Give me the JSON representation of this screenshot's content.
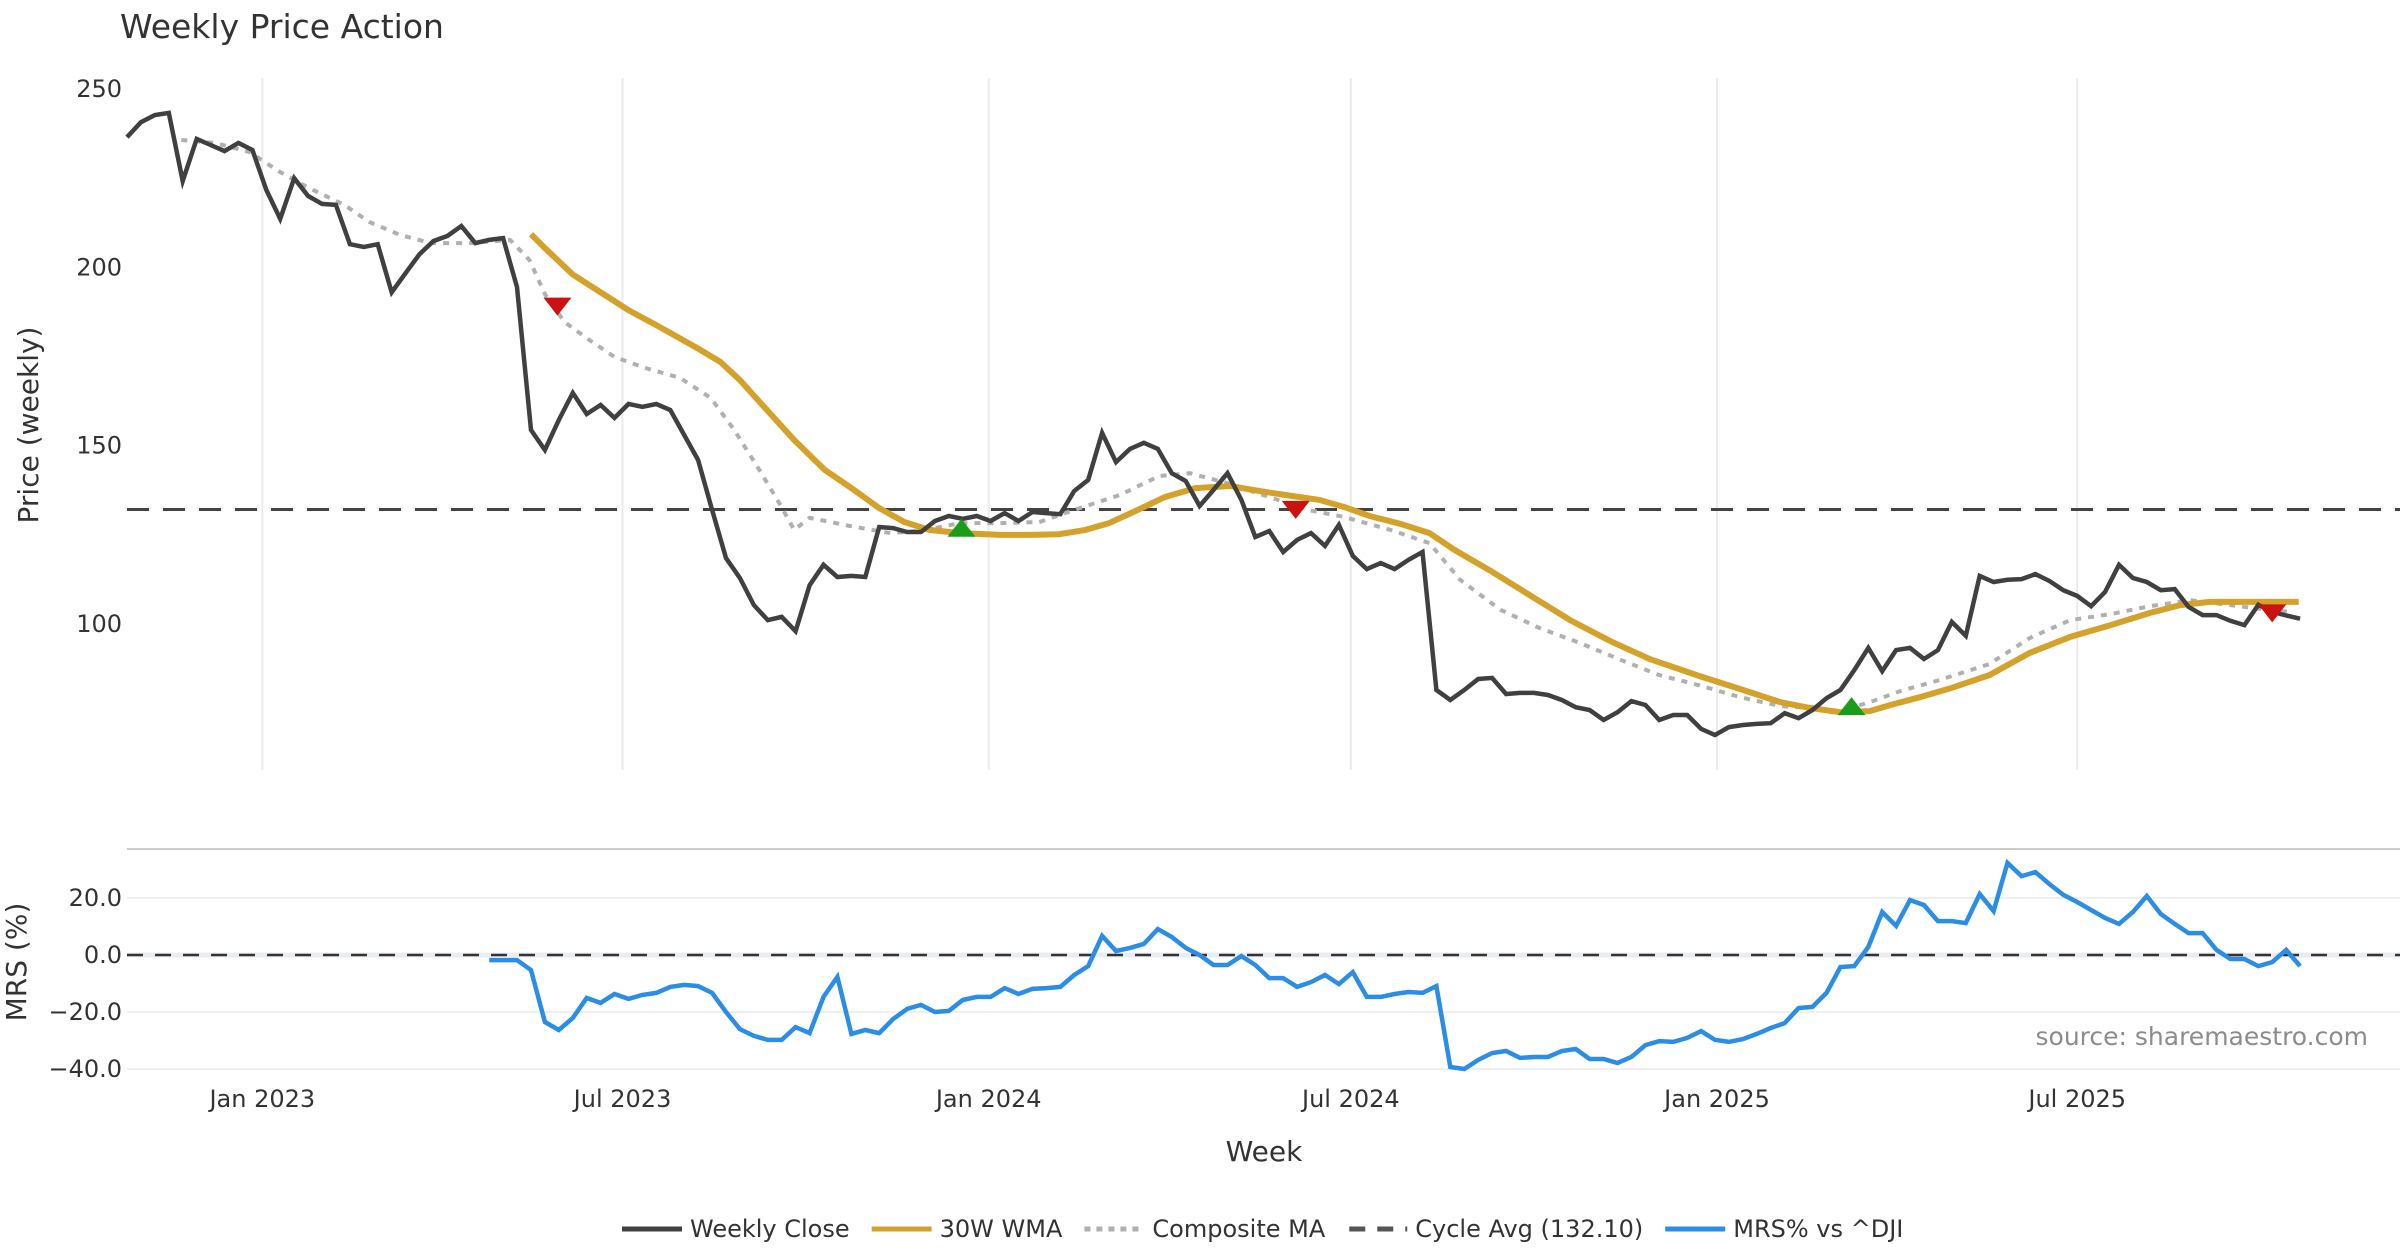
{
  "chart_data": {
    "type": "line",
    "title": "Weekly Price Action",
    "xlabel": "Week",
    "start_date": "2022-10-25",
    "step_days": 7,
    "x_ticks": [
      {
        "label": "Jan 2023",
        "date": "2023-01-01"
      },
      {
        "label": "Jul 2023",
        "date": "2023-07-01"
      },
      {
        "label": "Jan 2024",
        "date": "2024-01-01"
      },
      {
        "label": "Jul 2024",
        "date": "2024-07-01"
      },
      {
        "label": "Jan 2025",
        "date": "2025-01-01"
      },
      {
        "label": "Jul 2025",
        "date": "2025-07-01"
      }
    ],
    "price_panel": {
      "ylabel": "Price (weekly)",
      "ylim": [
        60,
        250
      ],
      "y_ticks": [
        {
          "value": 250,
          "label": "250"
        },
        {
          "value": 200,
          "label": "200"
        },
        {
          "value": 150,
          "label": "150"
        },
        {
          "value": 100,
          "label": "100"
        }
      ],
      "grid": "vertical",
      "series": [
        {
          "name": "Weekly Close",
          "color": "#404040",
          "style": "solid",
          "start_week": 0,
          "values": [
            236.5,
            240.7,
            242.7,
            243.3,
            224.2,
            236,
            234.3,
            232.6,
            234.9,
            232.9,
            221.7,
            213.6,
            225,
            220,
            217.8,
            217.5,
            206.5,
            205.7,
            206.5,
            193,
            198.4,
            203.7,
            207.4,
            208.8,
            211.6,
            206.8,
            207.7,
            208.2,
            194.5,
            154.4,
            148.8,
            157.2,
            164.8,
            158.9,
            161.4,
            157.8,
            161.7,
            160.9,
            161.7,
            160,
            153,
            146,
            132,
            118.5,
            112.9,
            105.3,
            101.1,
            102,
            98,
            110.9,
            116.6,
            113.2,
            113.5,
            113.2,
            127.2,
            126.9,
            125.8,
            125.8,
            128.9,
            130.3,
            129.5,
            130.3,
            128.9,
            131.1,
            128.9,
            131.4,
            131.1,
            130.8,
            137.3,
            140.4,
            153.6,
            145.4,
            149.1,
            150.8,
            149.1,
            142.3,
            140.1,
            133.1,
            137.6,
            142.3,
            134.8,
            124.4,
            126.1,
            120.2,
            123.6,
            125.5,
            121.9,
            127.8,
            119.1,
            115.4,
            117.1,
            115.4,
            118,
            120.2,
            81.5,
            78.7,
            81.5,
            84.6,
            84.9,
            80.4,
            80.7,
            80.7,
            80.1,
            78.7,
            76.7,
            75.9,
            73.1,
            75.3,
            78.4,
            77.3,
            73.1,
            74.5,
            74.5,
            70.6,
            68.9,
            71.1,
            71.7,
            72,
            72.2,
            75,
            73.6,
            75.9,
            79.2,
            81.5,
            87.1,
            93.3,
            86.8,
            92.7,
            93.3,
            90.2,
            92.7,
            100.6,
            96.7,
            113.5,
            111.8,
            112.4,
            112.6,
            114,
            112.1,
            109.5,
            107.9,
            105,
            109,
            116.6,
            112.9,
            111.8,
            109.5,
            109.8,
            104.8,
            102.5,
            102.5,
            100.9,
            99.7,
            105.4,
            103.4,
            102.4,
            101.5
          ]
        },
        {
          "name": "30W WMA",
          "color": "#d4a12a",
          "style": "solid",
          "points": [
            [
              29.0,
              209.3
            ],
            [
              30.0,
              205.4
            ],
            [
              32.0,
              198
            ],
            [
              34.0,
              193
            ],
            [
              36.0,
              188
            ],
            [
              38.0,
              183.8
            ],
            [
              41.1,
              177
            ],
            [
              42.6,
              173.5
            ],
            [
              44.0,
              168.4
            ],
            [
              45.8,
              160.6
            ],
            [
              47.9,
              151.6
            ],
            [
              50.1,
              143.2
            ],
            [
              51.9,
              138.4
            ],
            [
              54.0,
              132.5
            ],
            [
              55.8,
              128.6
            ],
            [
              57.6,
              126.4
            ],
            [
              59.8,
              125.5
            ],
            [
              62.7,
              125
            ],
            [
              64.8,
              125
            ],
            [
              66.9,
              125.2
            ],
            [
              68.8,
              126.4
            ],
            [
              70.5,
              128.3
            ],
            [
              72.4,
              131.7
            ],
            [
              74.5,
              135.6
            ],
            [
              76.7,
              138.1
            ],
            [
              79.2,
              138.7
            ],
            [
              81.0,
              137.5
            ],
            [
              83.1,
              136.2
            ],
            [
              85.6,
              134.8
            ],
            [
              87.4,
              132.8
            ],
            [
              89.2,
              130.3
            ],
            [
              91.4,
              128.1
            ],
            [
              93.5,
              125.5
            ],
            [
              95.3,
              120.8
            ],
            [
              97.9,
              114.9
            ],
            [
              100.7,
              108.1
            ],
            [
              103.6,
              101.1
            ],
            [
              106.5,
              95.2
            ],
            [
              109.3,
              90.2
            ],
            [
              112.9,
              85.4
            ],
            [
              115.8,
              81.8
            ],
            [
              118.7,
              78.1
            ],
            [
              120.8,
              76.5
            ],
            [
              123.0,
              75.3
            ],
            [
              125.1,
              75.6
            ],
            [
              126.6,
              77.3
            ],
            [
              128.7,
              79.5
            ],
            [
              130.9,
              82
            ],
            [
              133.7,
              85.7
            ],
            [
              136.6,
              91.9
            ],
            [
              139.5,
              96.4
            ],
            [
              142.4,
              99.7
            ],
            [
              145.2,
              103.1
            ],
            [
              147.4,
              105.3
            ],
            [
              149.5,
              106.2
            ],
            [
              152.4,
              106.2
            ],
            [
              155.9,
              106.2
            ]
          ]
        },
        {
          "name": "Composite MA",
          "color": "#b0b0b0",
          "style": "dotted",
          "points": [
            [
              3.9,
              235.7
            ],
            [
              6.3,
              234.9
            ],
            [
              8.8,
              232.3
            ],
            [
              11.0,
              226.7
            ],
            [
              13.1,
              222.2
            ],
            [
              15.6,
              217.5
            ],
            [
              17.4,
              212.7
            ],
            [
              19.6,
              209.1
            ],
            [
              21.8,
              206.8
            ],
            [
              24.6,
              206.8
            ],
            [
              27.5,
              207.7
            ],
            [
              28.9,
              202
            ],
            [
              30.0,
              192.5
            ],
            [
              31.4,
              184.7
            ],
            [
              33.2,
              179.6
            ],
            [
              35.0,
              174.9
            ],
            [
              37.2,
              171.8
            ],
            [
              39.7,
              169
            ],
            [
              41.9,
              163.4
            ],
            [
              43.6,
              154.4
            ],
            [
              45.4,
              143.2
            ],
            [
              46.9,
              133.4
            ],
            [
              47.9,
              126.4
            ],
            [
              49.0,
              129.8
            ],
            [
              51.9,
              127.5
            ],
            [
              54.8,
              125.5
            ],
            [
              56.9,
              126.1
            ],
            [
              59.8,
              128.3
            ],
            [
              62.7,
              128.3
            ],
            [
              65.5,
              128.6
            ],
            [
              68.4,
              132.5
            ],
            [
              71.3,
              136.2
            ],
            [
              74.1,
              141.5
            ],
            [
              76.3,
              142.3
            ],
            [
              79.2,
              139.3
            ],
            [
              82.0,
              135.6
            ],
            [
              84.9,
              131.9
            ],
            [
              87.4,
              130
            ],
            [
              90.7,
              126.4
            ],
            [
              93.5,
              122.7
            ],
            [
              95.7,
              112.4
            ],
            [
              98.6,
              104
            ],
            [
              101.4,
              98.9
            ],
            [
              104.3,
              94.7
            ],
            [
              107.2,
              90
            ],
            [
              110.0,
              85.7
            ],
            [
              112.9,
              82.8
            ],
            [
              115.8,
              79.5
            ],
            [
              118.7,
              77
            ],
            [
              120.8,
              76.5
            ],
            [
              123.0,
              75.6
            ],
            [
              125.1,
              78.1
            ],
            [
              127.3,
              81.2
            ],
            [
              130.1,
              84.3
            ],
            [
              133.7,
              88.8
            ],
            [
              136.6,
              96.1
            ],
            [
              139.5,
              101.1
            ],
            [
              142.4,
              102.8
            ],
            [
              145.2,
              105
            ],
            [
              148.1,
              106.7
            ],
            [
              151.0,
              105.3
            ],
            [
              153.8,
              103.9
            ],
            [
              155.3,
              103.4
            ]
          ]
        },
        {
          "name": "Cycle Avg (132.10)",
          "color": "#444444",
          "style": "dashed",
          "value": 132.1
        }
      ],
      "markers": [
        {
          "type": "sell",
          "week": 30.9,
          "value": 189,
          "color": "#cc1111"
        },
        {
          "type": "buy",
          "week": 59.9,
          "value": 127,
          "color": "#1a9e1a"
        },
        {
          "type": "sell",
          "week": 83.9,
          "value": 132,
          "color": "#cc1111"
        },
        {
          "type": "buy",
          "week": 123.8,
          "value": 77,
          "color": "#1a9e1a"
        },
        {
          "type": "sell",
          "week": 154.0,
          "value": 103,
          "color": "#cc1111"
        }
      ]
    },
    "mrs_panel": {
      "ylabel": "MRS (%)",
      "ylim": [
        -45,
        38
      ],
      "y_ticks": [
        {
          "value": 20,
          "label": "20.0"
        },
        {
          "value": 0,
          "label": "0.0"
        },
        {
          "value": -20,
          "label": "−20.0"
        },
        {
          "value": -40,
          "label": "−40.0"
        }
      ],
      "grid": "horizontal",
      "zero_line": 0,
      "series": [
        {
          "name": "MRS% vs ^DJI",
          "color": "#2b8de6",
          "style": "solid",
          "start_week": 26,
          "values": [
            -1.8,
            -1.8,
            -1.8,
            -5.3,
            -23.5,
            -26.3,
            -22.1,
            -15.1,
            -16.8,
            -13.7,
            -15.4,
            -14,
            -13.3,
            -11.2,
            -10.5,
            -10.9,
            -13.3,
            -20,
            -26,
            -28.4,
            -29.8,
            -29.8,
            -25.3,
            -27.4,
            -14.7,
            -7.7,
            -27.7,
            -26.3,
            -27.4,
            -22.5,
            -18.9,
            -17.5,
            -20,
            -19.6,
            -15.8,
            -14.7,
            -14.7,
            -11.6,
            -13.7,
            -11.9,
            -11.6,
            -11.2,
            -7,
            -3.9,
            6.7,
            1.4,
            2.5,
            3.9,
            9.1,
            6.3,
            2.5,
            0,
            -3.5,
            -3.5,
            -0.4,
            -3.5,
            -8.1,
            -8.1,
            -11.2,
            -9.5,
            -7,
            -10.2,
            -6,
            -14.7,
            -14.7,
            -13.7,
            -13,
            -13.3,
            -10.9,
            -39.3,
            -40,
            -36.8,
            -34.4,
            -33.7,
            -36.1,
            -35.8,
            -35.8,
            -33.7,
            -33,
            -36.5,
            -36.5,
            -37.9,
            -35.8,
            -31.6,
            -30.2,
            -30.5,
            -29.1,
            -26.7,
            -29.8,
            -30.5,
            -29.5,
            -27.7,
            -25.6,
            -23.9,
            -18.6,
            -18.2,
            -13.3,
            -4.2,
            -3.9,
            2.8,
            15.1,
            10.2,
            19.3,
            17.5,
            11.9,
            11.9,
            11.2,
            21.4,
            15.4,
            32.3,
            27.7,
            29.1,
            24.9,
            21.1,
            18.6,
            15.8,
            13,
            10.9,
            15.1,
            20.7,
            14.4,
            10.9,
            7.7,
            7.7,
            1.8,
            -1.4,
            -1.4,
            -3.9,
            -2.5,
            1.8,
            -3.9
          ]
        }
      ]
    },
    "legend": {
      "placement": "bottom-center",
      "entries": [
        {
          "label": "Weekly Close",
          "color": "#404040",
          "style": "solid"
        },
        {
          "label": "30W WMA",
          "color": "#d4a12a",
          "style": "solid"
        },
        {
          "label": "Composite MA",
          "color": "#b0b0b0",
          "style": "dotted"
        },
        {
          "label": "Cycle Avg (132.10)",
          "color": "#555555",
          "style": "dashed"
        },
        {
          "label": "MRS% vs ^DJI",
          "color": "#2b8de6",
          "style": "solid"
        }
      ]
    },
    "annotation": "source: sharemaestro.com"
  }
}
